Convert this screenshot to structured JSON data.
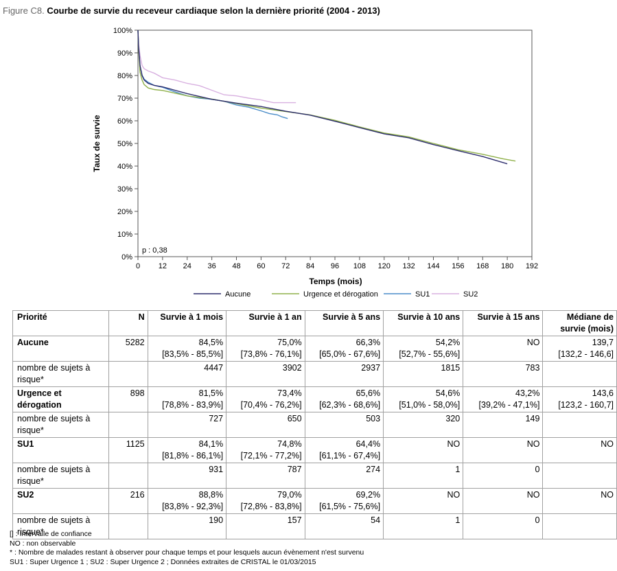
{
  "figure": {
    "number": "Figure C8.",
    "title": "Courbe de survie du receveur cardiaque selon la dernière priorité (2004 - 2013)"
  },
  "chart_data": {
    "type": "line",
    "xlabel": "Temps (mois)",
    "ylabel": "Taux de survie",
    "xlim": [
      0,
      192
    ],
    "ylim": [
      0,
      100
    ],
    "x_ticks": [
      0,
      12,
      24,
      36,
      48,
      60,
      72,
      84,
      96,
      108,
      120,
      132,
      144,
      156,
      168,
      180,
      192
    ],
    "y_ticks": [
      "0%",
      "10%",
      "20%",
      "30%",
      "40%",
      "50%",
      "60%",
      "70%",
      "80%",
      "90%",
      "100%"
    ],
    "annotation": "p : 0,38",
    "grid": false,
    "legend_position": "bottom",
    "series": [
      {
        "name": "Aucune",
        "color": "#2c2c6c",
        "points": [
          [
            0,
            100
          ],
          [
            0.3,
            93
          ],
          [
            0.7,
            88
          ],
          [
            1,
            84.5
          ],
          [
            2,
            80
          ],
          [
            3,
            78
          ],
          [
            5,
            76.5
          ],
          [
            8,
            75.6
          ],
          [
            12,
            75
          ],
          [
            18,
            73.5
          ],
          [
            24,
            72
          ],
          [
            36,
            69.5
          ],
          [
            48,
            67.8
          ],
          [
            60,
            66.3
          ],
          [
            72,
            64.2
          ],
          [
            84,
            62.5
          ],
          [
            96,
            59.8
          ],
          [
            108,
            57
          ],
          [
            120,
            54.2
          ],
          [
            132,
            52.5
          ],
          [
            144,
            49.5
          ],
          [
            156,
            46.8
          ],
          [
            168,
            44.2
          ],
          [
            180,
            41
          ]
        ]
      },
      {
        "name": "Urgence et dérogation",
        "color": "#8fb04a",
        "points": [
          [
            0,
            100
          ],
          [
            0.3,
            92
          ],
          [
            0.7,
            86
          ],
          [
            1,
            81.5
          ],
          [
            2,
            78
          ],
          [
            3,
            76
          ],
          [
            5,
            74.5
          ],
          [
            8,
            73.8
          ],
          [
            12,
            73.4
          ],
          [
            18,
            72.2
          ],
          [
            24,
            71
          ],
          [
            36,
            69.6
          ],
          [
            48,
            67.6
          ],
          [
            60,
            65.6
          ],
          [
            72,
            64.1
          ],
          [
            84,
            62.6
          ],
          [
            96,
            60.2
          ],
          [
            108,
            57.3
          ],
          [
            120,
            54.6
          ],
          [
            132,
            52.9
          ],
          [
            144,
            50
          ],
          [
            156,
            47.2
          ],
          [
            168,
            45.2
          ],
          [
            178,
            43.2
          ],
          [
            184,
            42.2
          ]
        ]
      },
      {
        "name": "SU1",
        "color": "#4a8cc8",
        "points": [
          [
            0,
            100
          ],
          [
            0.3,
            92
          ],
          [
            0.7,
            88
          ],
          [
            1,
            84.1
          ],
          [
            2,
            80.2
          ],
          [
            3,
            78.4
          ],
          [
            5,
            77
          ],
          [
            8,
            75.6
          ],
          [
            12,
            74.8
          ],
          [
            18,
            72.8
          ],
          [
            24,
            71
          ],
          [
            30,
            70
          ],
          [
            36,
            69.5
          ],
          [
            42,
            68.6
          ],
          [
            48,
            67
          ],
          [
            54,
            66
          ],
          [
            60,
            64.4
          ],
          [
            64,
            63.2
          ],
          [
            68,
            62.6
          ],
          [
            70,
            61.8
          ],
          [
            73,
            61
          ]
        ]
      },
      {
        "name": "SU2",
        "color": "#d8b0e0",
        "points": [
          [
            0,
            100
          ],
          [
            0.3,
            94
          ],
          [
            0.7,
            91
          ],
          [
            1,
            88.8
          ],
          [
            2,
            84.5
          ],
          [
            3,
            83
          ],
          [
            5,
            82
          ],
          [
            8,
            81
          ],
          [
            12,
            79
          ],
          [
            18,
            78
          ],
          [
            24,
            76.5
          ],
          [
            30,
            75.5
          ],
          [
            36,
            73.5
          ],
          [
            42,
            71.5
          ],
          [
            48,
            71
          ],
          [
            54,
            70
          ],
          [
            60,
            69.2
          ],
          [
            66,
            68
          ],
          [
            72,
            68
          ],
          [
            77,
            68
          ]
        ]
      }
    ]
  },
  "table": {
    "headers": [
      "Priorité",
      "N",
      "Survie à 1 mois",
      "Survie à 1 an",
      "Survie à 5 ans",
      "Survie à 10 ans",
      "Survie à 15 ans",
      "Médiane de survie (mois)"
    ],
    "rows": [
      {
        "label": "Aucune",
        "n": "5282",
        "cells": [
          [
            "84,5%",
            "[83,5% - 85,5%]"
          ],
          [
            "75,0%",
            "[73,8% - 76,1%]"
          ],
          [
            "66,3%",
            "[65,0% - 67,6%]"
          ],
          [
            "54,2%",
            "[52,7% - 55,6%]"
          ],
          [
            "NO",
            ""
          ],
          [
            "139,7",
            "[132,2 - 146,6]"
          ]
        ],
        "risk_label": "nombre de sujets à risque*",
        "risk": [
          "4447",
          "3902",
          "2937",
          "1815",
          "783",
          ""
        ]
      },
      {
        "label": "Urgence et dérogation",
        "n": "898",
        "cells": [
          [
            "81,5%",
            "[78,8% - 83,9%]"
          ],
          [
            "73,4%",
            "[70,4% - 76,2%]"
          ],
          [
            "65,6%",
            "[62,3% - 68,6%]"
          ],
          [
            "54,6%",
            "[51,0% - 58,0%]"
          ],
          [
            "43,2%",
            "[39,2% - 47,1%]"
          ],
          [
            "143,6",
            "[123,2 - 160,7]"
          ]
        ],
        "risk_label": "nombre de sujets à risque*",
        "risk": [
          "727",
          "650",
          "503",
          "320",
          "149",
          ""
        ]
      },
      {
        "label": "SU1",
        "n": "1125",
        "cells": [
          [
            "84,1%",
            "[81,8% - 86,1%]"
          ],
          [
            "74,8%",
            "[72,1% - 77,2%]"
          ],
          [
            "64,4%",
            "[61,1% - 67,4%]"
          ],
          [
            "NO",
            ""
          ],
          [
            "NO",
            ""
          ],
          [
            "NO",
            ""
          ]
        ],
        "risk_label": "nombre de sujets à risque*",
        "risk": [
          "931",
          "787",
          "274",
          "1",
          "0",
          ""
        ]
      },
      {
        "label": "SU2",
        "n": "216",
        "cells": [
          [
            "88,8%",
            "[83,8% - 92,3%]"
          ],
          [
            "79,0%",
            "[72,8% - 83,8%]"
          ],
          [
            "69,2%",
            "[61,5% - 75,6%]"
          ],
          [
            "NO",
            ""
          ],
          [
            "NO",
            ""
          ],
          [
            "NO",
            ""
          ]
        ],
        "risk_label": "nombre de sujets à risque*",
        "risk": [
          "190",
          "157",
          "54",
          "1",
          "0",
          ""
        ]
      }
    ]
  },
  "notes": [
    "[] : Intervalle de confiance",
    "NO : non observable",
    "* : Nombre de malades restant à observer pour chaque temps et pour lesquels aucun évènement n'est survenu",
    "SU1 : Super Urgence 1 ; SU2 : Super Urgence 2 ; Données extraites de CRISTAL le 01/03/2015"
  ]
}
